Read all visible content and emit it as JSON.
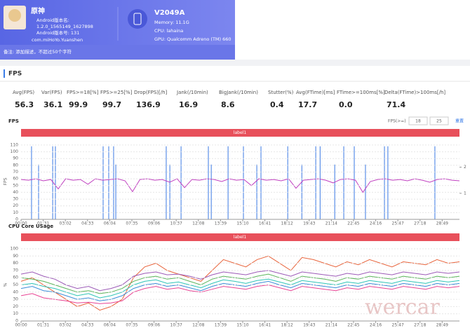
{
  "header": {
    "app_name": "原神",
    "version_name_label": "Android版本名:",
    "version_name": "1.2.0_1565149_1627898",
    "version_code": "Android版本号: 131",
    "package": "com.miHoYo.Yuanshen",
    "note": "备注: 添加描述，不超过50个字符",
    "device": "V2049A",
    "memory": "Memory: 11.1G",
    "cpu": "CPU: lahaina",
    "gpu": "GPU: Qualcomm Adreno (TM) 660"
  },
  "section_title": "FPS",
  "stats": [
    {
      "label": "Avg(FPS)",
      "value": "56.3"
    },
    {
      "label": "Var(FPS)",
      "value": "36.1"
    },
    {
      "label": "FPS>=18[%]",
      "value": "99.9"
    },
    {
      "label": "FPS>=25[%]",
      "value": "99.7"
    },
    {
      "label": "Drop(FPS)[/h]",
      "value": "136.9"
    },
    {
      "label": "Jank(/10min)",
      "value": "16.9"
    },
    {
      "label": "BigJank(/10min)",
      "value": "8.6"
    },
    {
      "label": "Stutter(%)",
      "value": "0.4"
    },
    {
      "label": "Avg(FTime)[ms]",
      "value": "17.7"
    },
    {
      "label": "FTime>=100ms[%]",
      "value": "0.0"
    },
    {
      "label": "Delta(FTime)>100ms[/h]",
      "value": "71.4"
    }
  ],
  "fps_chart": {
    "type": "line",
    "title": "FPS",
    "threshold_label": "FPS(>=)",
    "threshold_1": "18",
    "threshold_2": "25",
    "reset": "重置",
    "legend": "label1",
    "y_label": "FPS",
    "xlim": [
      0,
      1800
    ],
    "xticks": [
      {
        "value": 0,
        "label": "00:00"
      },
      {
        "value": 91,
        "label": "01:31"
      },
      {
        "value": 182,
        "label": "03:02"
      },
      {
        "value": 273,
        "label": "04:33"
      },
      {
        "value": 364,
        "label": "06:04"
      },
      {
        "value": 455,
        "label": "07:35"
      },
      {
        "value": 546,
        "label": "09:06"
      },
      {
        "value": 637,
        "label": "10:37"
      },
      {
        "value": 728,
        "label": "12:08"
      },
      {
        "value": 819,
        "label": "13:39"
      },
      {
        "value": 910,
        "label": "15:10"
      },
      {
        "value": 1001,
        "label": "16:41"
      },
      {
        "value": 1092,
        "label": "18:12"
      },
      {
        "value": 1183,
        "label": "19:43"
      },
      {
        "value": 1274,
        "label": "21:14"
      },
      {
        "value": 1365,
        "label": "22:45"
      },
      {
        "value": 1456,
        "label": "24:16"
      },
      {
        "value": 1547,
        "label": "25:47"
      },
      {
        "value": 1638,
        "label": "27:18"
      },
      {
        "value": 1729,
        "label": "28:49"
      }
    ],
    "ylim": [
      0,
      112
    ],
    "yticks": [
      0,
      10,
      20,
      30,
      40,
      50,
      60,
      70,
      80,
      90,
      100,
      110
    ],
    "y2lim": [
      0,
      2.9
    ],
    "y2ticks": [
      1,
      2
    ],
    "series": [
      {
        "color": "#c040c0",
        "values": [
          59,
          58,
          60,
          57,
          59,
          45,
          60,
          58,
          59,
          52,
          60,
          58,
          59,
          60,
          57,
          41,
          59,
          60,
          58,
          59,
          55,
          60,
          47,
          59,
          58,
          60,
          59,
          56,
          60,
          58,
          59,
          50,
          60,
          58,
          59,
          57,
          60,
          46,
          58,
          59,
          60,
          58,
          54,
          59,
          60,
          58,
          40,
          56,
          59,
          60,
          58,
          59,
          57,
          60,
          58,
          55,
          59,
          60,
          58,
          57
        ]
      },
      {
        "color": "#5b8fe8",
        "axis": "y2",
        "x": [
          43,
          72,
          130,
          141,
          337,
          360,
          380,
          389,
          596,
          611,
          657,
          769,
          781,
          850,
          913,
          968,
          985,
          1095,
          1153,
          1210,
          1228,
          1288,
          1325,
          1368,
          1414,
          1492,
          1506,
          1699
        ],
        "values": [
          2.8,
          2.1,
          2.8,
          2.8,
          2.8,
          2.8,
          2.8,
          2.1,
          2.8,
          2.1,
          2.8,
          2.8,
          2.1,
          2.8,
          2.8,
          2.1,
          2.8,
          2.8,
          2.1,
          2.8,
          2.8,
          2.1,
          2.8,
          2.8,
          2.1,
          2.8,
          2.8,
          2.8
        ]
      }
    ]
  },
  "cpu_chart": {
    "type": "line",
    "title": "CPU Core USage",
    "legend": "label1",
    "y_label": "%",
    "xlim": [
      0,
      1800
    ],
    "xticks": [
      {
        "value": 0,
        "label": "00:00"
      },
      {
        "value": 91,
        "label": "01:31"
      },
      {
        "value": 182,
        "label": "03:02"
      },
      {
        "value": 273,
        "label": "04:33"
      },
      {
        "value": 364,
        "label": "06:04"
      },
      {
        "value": 455,
        "label": "07:35"
      },
      {
        "value": 546,
        "label": "09:06"
      },
      {
        "value": 637,
        "label": "10:37"
      },
      {
        "value": 728,
        "label": "12:08"
      },
      {
        "value": 819,
        "label": "13:39"
      },
      {
        "value": 910,
        "label": "15:10"
      },
      {
        "value": 1001,
        "label": "16:41"
      },
      {
        "value": 1092,
        "label": "18:12"
      },
      {
        "value": 1183,
        "label": "19:43"
      },
      {
        "value": 1274,
        "label": "21:14"
      },
      {
        "value": 1365,
        "label": "22:45"
      },
      {
        "value": 1456,
        "label": "24:16"
      },
      {
        "value": 1547,
        "label": "25:47"
      },
      {
        "value": 1638,
        "label": "27:18"
      },
      {
        "value": 1729,
        "label": "28:49"
      }
    ],
    "ylim": [
      0,
      100
    ],
    "yticks": [
      0,
      10,
      20,
      30,
      40,
      50,
      60,
      70,
      80,
      90,
      100
    ],
    "series": [
      {
        "color": "#e8643c",
        "values": [
          55,
          60,
          50,
          40,
          30,
          20,
          25,
          15,
          20,
          30,
          60,
          75,
          80,
          70,
          65,
          60,
          55,
          70,
          85,
          80,
          75,
          85,
          90,
          80,
          70,
          88,
          85,
          80,
          75,
          82,
          78,
          85,
          80,
          75,
          82,
          80,
          78,
          85,
          80,
          82
        ]
      },
      {
        "color": "#5ab45a",
        "values": [
          60,
          58,
          55,
          50,
          45,
          40,
          42,
          38,
          40,
          45,
          55,
          60,
          62,
          58,
          60,
          55,
          50,
          58,
          62,
          60,
          58,
          62,
          65,
          60,
          55,
          62,
          60,
          58,
          55,
          60,
          58,
          62,
          60,
          58,
          62,
          60,
          58,
          62,
          60,
          62
        ]
      },
      {
        "color": "#9b59b6",
        "values": [
          65,
          68,
          62,
          58,
          50,
          45,
          48,
          42,
          45,
          50,
          62,
          66,
          68,
          64,
          65,
          62,
          58,
          64,
          68,
          66,
          64,
          68,
          70,
          66,
          62,
          68,
          66,
          64,
          62,
          66,
          64,
          68,
          66,
          64,
          68,
          66,
          64,
          68,
          66,
          68
        ]
      },
      {
        "color": "#3c8dd8",
        "values": [
          45,
          48,
          42,
          40,
          35,
          30,
          32,
          28,
          30,
          35,
          45,
          50,
          52,
          48,
          50,
          46,
          42,
          48,
          52,
          50,
          48,
          52,
          55,
          50,
          46,
          52,
          50,
          48,
          46,
          50,
          48,
          52,
          50,
          48,
          52,
          50,
          48,
          52,
          50,
          52
        ]
      },
      {
        "color": "#2ec4b6",
        "values": [
          50,
          52,
          48,
          45,
          40,
          35,
          38,
          32,
          35,
          40,
          50,
          55,
          57,
          52,
          54,
          50,
          46,
          52,
          57,
          55,
          52,
          56,
          58,
          54,
          50,
          56,
          54,
          52,
          50,
          54,
          52,
          56,
          54,
          52,
          56,
          54,
          52,
          56,
          54,
          56
        ]
      },
      {
        "color": "#e84393",
        "values": [
          35,
          38,
          32,
          30,
          28,
          25,
          26,
          24,
          25,
          28,
          40,
          45,
          48,
          44,
          46,
          42,
          40,
          44,
          48,
          46,
          44,
          48,
          50,
          46,
          42,
          48,
          46,
          44,
          42,
          46,
          44,
          48,
          46,
          44,
          48,
          46,
          44,
          48,
          46,
          48
        ]
      }
    ]
  },
  "watermark": "wercar"
}
